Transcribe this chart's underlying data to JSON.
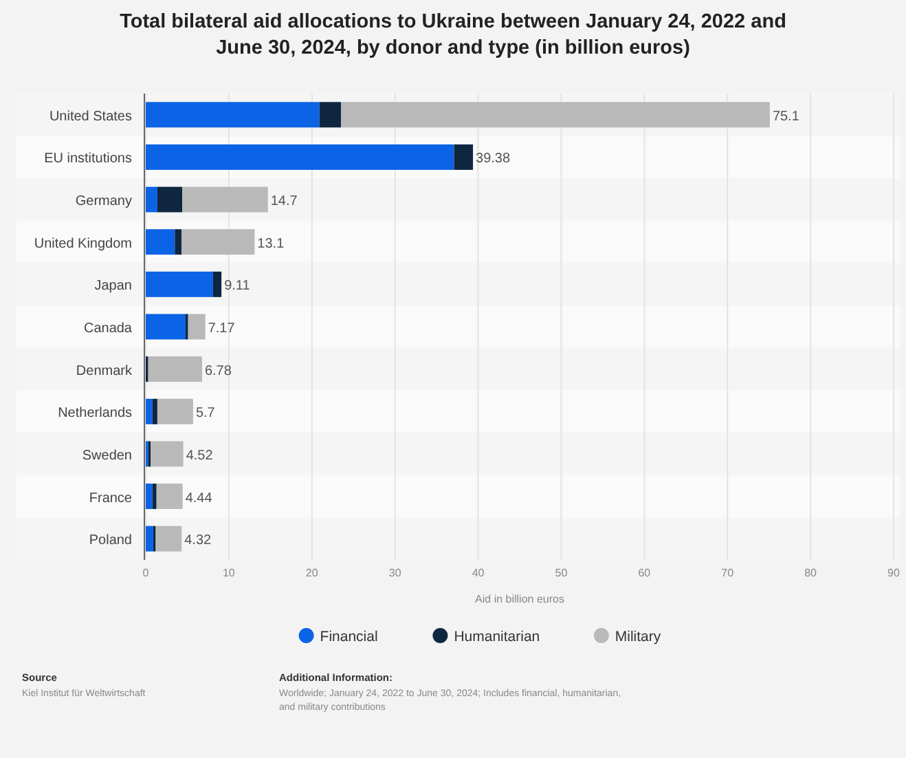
{
  "chart_data": {
    "type": "bar",
    "orientation": "horizontal",
    "stacked": true,
    "title": "Total bilateral aid allocations to Ukraine between January 24, 2022 and June 30, 2024, by donor and type (in billion euros)",
    "xlabel": "Aid in billion euros",
    "categories": [
      "United States",
      "EU institutions",
      "Germany",
      "United Kingdom",
      "Japan",
      "Canada",
      "Denmark",
      "Netherlands",
      "Sweden",
      "France",
      "Poland"
    ],
    "series": [
      {
        "name": "Financial",
        "color": "#0b63e5",
        "values": [
          20.9,
          37.1,
          1.4,
          3.5,
          8.1,
          4.8,
          null,
          0.8,
          0.3,
          0.8,
          0.9
        ]
      },
      {
        "name": "Humanitarian",
        "color": "#0f2641",
        "values": [
          2.6,
          2.28,
          3.0,
          0.8,
          1.01,
          0.3,
          0.3,
          0.6,
          0.3,
          0.5,
          0.3
        ]
      },
      {
        "name": "Military",
        "color": "#b9b9b9",
        "values": [
          51.6,
          0,
          10.3,
          8.8,
          0,
          2.07,
          6.48,
          4.3,
          3.92,
          3.14,
          3.12
        ]
      }
    ],
    "totals": [
      "75.1",
      "39.38",
      "14.7",
      "13.1",
      "9.11",
      "7.17",
      "6.78",
      "5.7",
      "4.52",
      "4.44",
      "4.32"
    ],
    "xlim": [
      0,
      90
    ],
    "xticks": [
      0,
      10,
      20,
      30,
      40,
      50,
      60,
      70,
      80,
      90
    ],
    "grid": "x",
    "legend": "bottom",
    "annotations": [
      "Source",
      "Kiel Institut für Weltwirtschaft",
      "Additional Information:",
      "Worldwide; January 24, 2022 to June 30, 2024; Includes financial, humanitarian, and military contributions"
    ]
  }
}
